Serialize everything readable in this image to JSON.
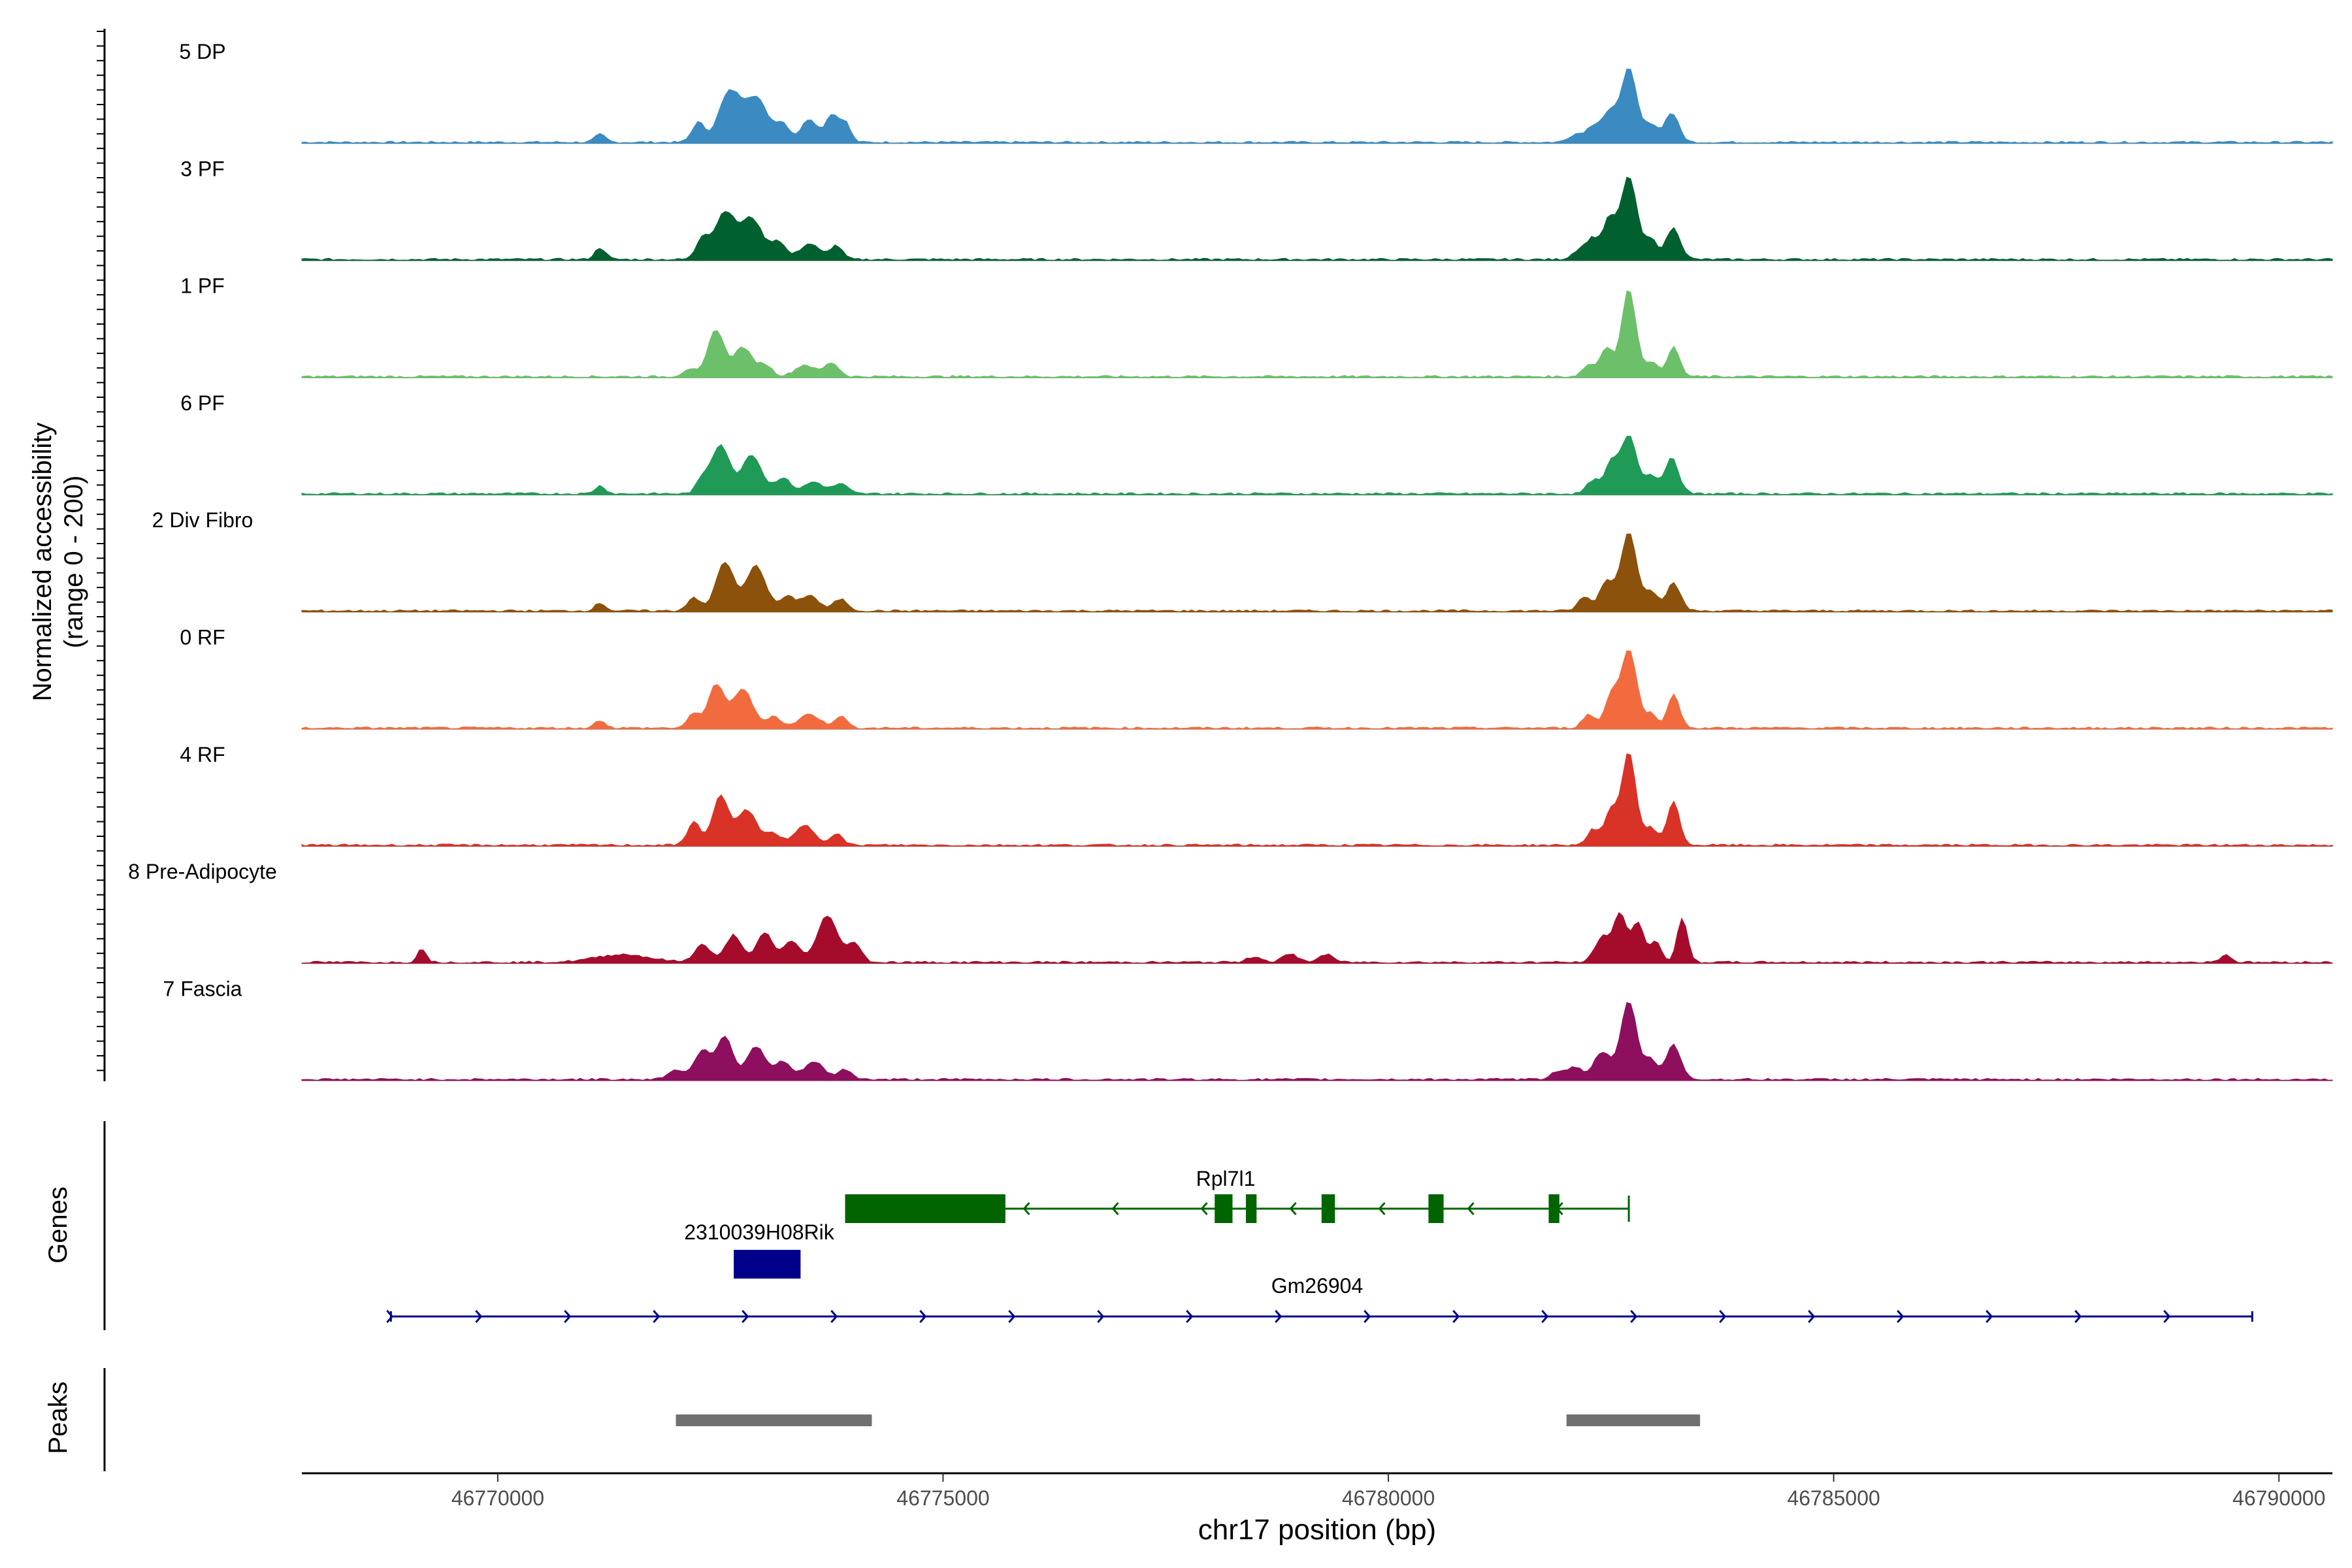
{
  "chart_data": {
    "type": "area",
    "title": "",
    "xlabel": "chr17 position (bp)",
    "ylabel_line1": "Normalized accessibility",
    "ylabel_line2": "(range 0 - 200)",
    "yrange": [
      0,
      200
    ],
    "xlim": [
      46767800,
      46790600
    ],
    "x_ticks": [
      "46770000",
      "46775000",
      "46780000",
      "46785000",
      "46790000"
    ],
    "x_tick_values": [
      46770000,
      46775000,
      46780000,
      46785000,
      46790000
    ],
    "tracks": [
      {
        "name": "5 DP",
        "color": "#3b8bc2",
        "scale": 1.0,
        "peaks": [
          [
            46771150,
            8,
            60
          ],
          [
            46772250,
            20,
            70
          ],
          [
            46772600,
            50,
            120
          ],
          [
            46772900,
            45,
            130
          ],
          [
            46773200,
            18,
            80
          ],
          [
            46773500,
            24,
            90
          ],
          [
            46773750,
            28,
            70
          ],
          [
            46773900,
            20,
            60
          ],
          [
            46782300,
            16,
            80
          ],
          [
            46782480,
            28,
            80
          ],
          [
            46782700,
            75,
            90
          ],
          [
            46782950,
            18,
            70
          ],
          [
            46783180,
            30,
            80
          ],
          [
            46782100,
            8,
            80
          ]
        ]
      },
      {
        "name": "3 PF",
        "color": "#00602f",
        "scale": 1.0,
        "peaks": [
          [
            46771150,
            12,
            60
          ],
          [
            46772300,
            22,
            70
          ],
          [
            46772550,
            48,
            110
          ],
          [
            46772850,
            42,
            120
          ],
          [
            46773150,
            18,
            80
          ],
          [
            46773500,
            16,
            110
          ],
          [
            46773800,
            14,
            70
          ],
          [
            46782300,
            20,
            70
          ],
          [
            46782480,
            40,
            70
          ],
          [
            46782700,
            85,
            90
          ],
          [
            46782950,
            20,
            70
          ],
          [
            46783200,
            32,
            80
          ],
          [
            46782150,
            10,
            80
          ]
        ]
      },
      {
        "name": "1 PF",
        "color": "#6cc06a",
        "scale": 1.0,
        "peaks": [
          [
            46772150,
            8,
            70
          ],
          [
            46772450,
            48,
            90
          ],
          [
            46772750,
            30,
            100
          ],
          [
            46773000,
            12,
            80
          ],
          [
            46773450,
            12,
            110
          ],
          [
            46773750,
            14,
            80
          ],
          [
            46782250,
            12,
            70
          ],
          [
            46782450,
            30,
            70
          ],
          [
            46782700,
            90,
            80
          ],
          [
            46782950,
            15,
            70
          ],
          [
            46783200,
            30,
            70
          ]
        ]
      },
      {
        "name": "6 PF",
        "color": "#1f9a57",
        "scale": 1.0,
        "peaks": [
          [
            46771150,
            8,
            60
          ],
          [
            46772300,
            14,
            70
          ],
          [
            46772500,
            50,
            100
          ],
          [
            46772850,
            40,
            110
          ],
          [
            46773200,
            16,
            90
          ],
          [
            46773550,
            12,
            110
          ],
          [
            46773850,
            10,
            80
          ],
          [
            46782300,
            14,
            70
          ],
          [
            46782500,
            30,
            70
          ],
          [
            46782700,
            60,
            90
          ],
          [
            46782950,
            18,
            70
          ],
          [
            46783180,
            36,
            80
          ]
        ]
      },
      {
        "name": "2 Div Fibro",
        "color": "#8c510a",
        "scale": 1.0,
        "peaks": [
          [
            46771150,
            8,
            60
          ],
          [
            46772200,
            14,
            70
          ],
          [
            46772550,
            50,
            100
          ],
          [
            46772900,
            46,
            110
          ],
          [
            46773250,
            14,
            80
          ],
          [
            46773500,
            16,
            100
          ],
          [
            46773850,
            12,
            80
          ],
          [
            46782200,
            14,
            70
          ],
          [
            46782450,
            30,
            80
          ],
          [
            46782700,
            80,
            90
          ],
          [
            46782950,
            20,
            70
          ],
          [
            46783200,
            28,
            80
          ]
        ]
      },
      {
        "name": "0 RF",
        "color": "#f26b3f",
        "scale": 1.0,
        "peaks": [
          [
            46771150,
            8,
            60
          ],
          [
            46772200,
            14,
            70
          ],
          [
            46772450,
            44,
            90
          ],
          [
            46772750,
            40,
            110
          ],
          [
            46773100,
            12,
            80
          ],
          [
            46773500,
            14,
            120
          ],
          [
            46773850,
            12,
            70
          ],
          [
            46782250,
            14,
            70
          ],
          [
            46782500,
            32,
            70
          ],
          [
            46782700,
            80,
            90
          ],
          [
            46782950,
            14,
            60
          ],
          [
            46783200,
            34,
            70
          ]
        ]
      },
      {
        "name": "4 RF",
        "color": "#d93227",
        "scale": 1.0,
        "peaks": [
          [
            46772200,
            24,
            70
          ],
          [
            46772500,
            50,
            90
          ],
          [
            46772800,
            36,
            110
          ],
          [
            46773100,
            12,
            80
          ],
          [
            46773450,
            20,
            110
          ],
          [
            46773800,
            12,
            70
          ],
          [
            46782300,
            16,
            70
          ],
          [
            46782500,
            34,
            70
          ],
          [
            46782700,
            95,
            80
          ],
          [
            46782950,
            18,
            70
          ],
          [
            46783200,
            44,
            70
          ]
        ]
      },
      {
        "name": "8 Pre-Adipocyte",
        "color": "#a50c2c",
        "scale": 1.0,
        "peaks": [
          [
            46769150,
            14,
            50
          ],
          [
            46771400,
            8,
            300
          ],
          [
            46772300,
            18,
            90
          ],
          [
            46772650,
            28,
            90
          ],
          [
            46773000,
            30,
            90
          ],
          [
            46773300,
            22,
            90
          ],
          [
            46773700,
            48,
            110
          ],
          [
            46774000,
            20,
            80
          ],
          [
            46782400,
            26,
            80
          ],
          [
            46782600,
            50,
            70
          ],
          [
            46782800,
            40,
            70
          ],
          [
            46783000,
            22,
            60
          ],
          [
            46783300,
            44,
            60
          ],
          [
            46778500,
            6,
            80
          ],
          [
            46778900,
            8,
            90
          ],
          [
            46779300,
            8,
            80
          ],
          [
            46789400,
            8,
            60
          ]
        ]
      },
      {
        "name": "7 Fascia",
        "color": "#8e0f5d",
        "scale": 1.0,
        "peaks": [
          [
            46772000,
            10,
            90
          ],
          [
            46772300,
            30,
            90
          ],
          [
            46772550,
            44,
            90
          ],
          [
            46772900,
            34,
            100
          ],
          [
            46773200,
            18,
            90
          ],
          [
            46773550,
            18,
            110
          ],
          [
            46773900,
            10,
            80
          ],
          [
            46782100,
            12,
            90
          ],
          [
            46782400,
            28,
            90
          ],
          [
            46782700,
            80,
            90
          ],
          [
            46782950,
            20,
            70
          ],
          [
            46783200,
            36,
            80
          ],
          [
            46781900,
            8,
            80
          ]
        ]
      }
    ],
    "genes": [
      {
        "name": "Rpl7l1",
        "strand": "-",
        "start": 46773900,
        "end": 46782700,
        "color": "#006400",
        "row": 0,
        "exons": [
          [
            46773900,
            46775700
          ],
          [
            46778050,
            46778250
          ],
          [
            46778400,
            46778520
          ],
          [
            46779250,
            46779400
          ],
          [
            46780450,
            46780620
          ],
          [
            46781800,
            46781920
          ]
        ]
      },
      {
        "name": "2310039H08Rik",
        "strand": "+",
        "start": 46772650,
        "end": 46773400,
        "color": "#00008b",
        "row": 1,
        "exons": [
          [
            46772650,
            46773400
          ]
        ]
      },
      {
        "name": "Gm26904",
        "strand": "+",
        "start": 46768800,
        "end": 46789700,
        "color": "#00008b",
        "row": 2,
        "exons": []
      }
    ],
    "peak_regions": [
      [
        46772000,
        46774200
      ],
      [
        46782000,
        46783500
      ]
    ],
    "panel_labels": {
      "genes": "Genes",
      "peaks": "Peaks"
    }
  }
}
